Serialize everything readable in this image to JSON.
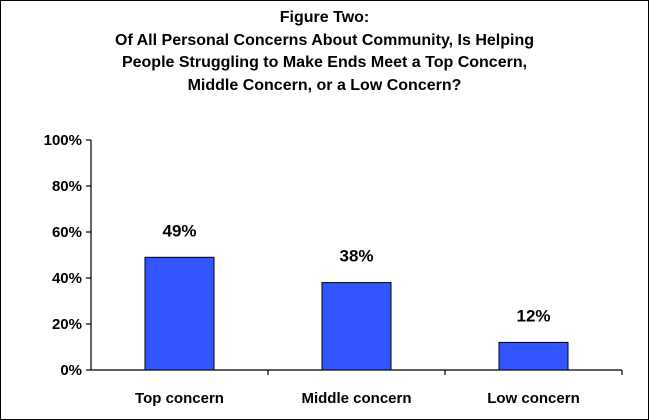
{
  "chart_data": {
    "type": "bar",
    "title_lines": [
      "Figure Two:",
      "Of All Personal Concerns About Community, Is Helping",
      "People Struggling to Make Ends Meet a Top Concern,",
      "Middle Concern, or a Low Concern?"
    ],
    "categories": [
      "Top concern",
      "Middle concern",
      "Low concern"
    ],
    "values": [
      49,
      38,
      12
    ],
    "data_labels": [
      "49%",
      "38%",
      "12%"
    ],
    "y_ticks": [
      0,
      20,
      40,
      60,
      80,
      100
    ],
    "y_tick_labels": [
      "0%",
      "20%",
      "40%",
      "60%",
      "80%",
      "100%"
    ],
    "ylim": [
      0,
      100
    ],
    "grid": false,
    "legend": "none",
    "bar_color": "#3355FF",
    "bar_edge_color": "#000000"
  }
}
